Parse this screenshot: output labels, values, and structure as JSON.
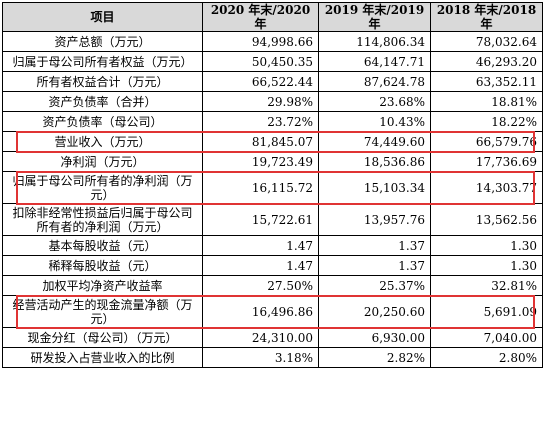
{
  "table": {
    "headers": [
      "项目",
      "2020 年末/2020 年",
      "2019 年末/2019 年",
      "2018 年末/2018 年"
    ],
    "rows": [
      {
        "label": "资产总额（万元）",
        "v2020": "94,998.66",
        "v2019": "114,806.34",
        "v2018": "78,032.64"
      },
      {
        "label": "归属于母公司所有者权益（万元）",
        "v2020": "50,450.35",
        "v2019": "64,147.71",
        "v2018": "46,293.20"
      },
      {
        "label": "所有者权益合计（万元）",
        "v2020": "66,522.44",
        "v2019": "87,624.78",
        "v2018": "63,352.11"
      },
      {
        "label": "资产负债率（合并）",
        "v2020": "29.98%",
        "v2019": "23.68%",
        "v2018": "18.81%"
      },
      {
        "label": "资产负债率（母公司）",
        "v2020": "23.72%",
        "v2019": "10.43%",
        "v2018": "18.22%"
      },
      {
        "label": "营业收入（万元）",
        "v2020": "81,845.07",
        "v2019": "74,449.60",
        "v2018": "66,579.76"
      },
      {
        "label": "净利润（万元）",
        "v2020": "19,723.49",
        "v2019": "18,536.86",
        "v2018": "17,736.69"
      },
      {
        "label": "归属于母公司所有者的净利润（万元）",
        "v2020": "16,115.72",
        "v2019": "15,103.34",
        "v2018": "14,303.77"
      },
      {
        "label": "扣除非经常性损益后归属于母公司所有者的净利润（万元）",
        "v2020": "15,722.61",
        "v2019": "13,957.76",
        "v2018": "13,562.56"
      },
      {
        "label": "基本每股收益（元）",
        "v2020": "1.47",
        "v2019": "1.37",
        "v2018": "1.30"
      },
      {
        "label": "稀释每股收益（元）",
        "v2020": "1.47",
        "v2019": "1.37",
        "v2018": "1.30"
      },
      {
        "label": "加权平均净资产收益率",
        "v2020": "27.50%",
        "v2019": "25.37%",
        "v2018": "32.81%"
      },
      {
        "label": "经营活动产生的现金流量净额（万元）",
        "v2020": "16,496.86",
        "v2019": "20,250.60",
        "v2018": "5,691.09"
      },
      {
        "label": "现金分红（母公司）（万元）",
        "v2020": "24,310.00",
        "v2019": "6,930.00",
        "v2018": "7,040.00"
      },
      {
        "label": "研发投入占营业收入的比例",
        "v2020": "3.18%",
        "v2019": "2.82%",
        "v2018": "2.80%"
      }
    ]
  },
  "highlight_color": "#e03434"
}
